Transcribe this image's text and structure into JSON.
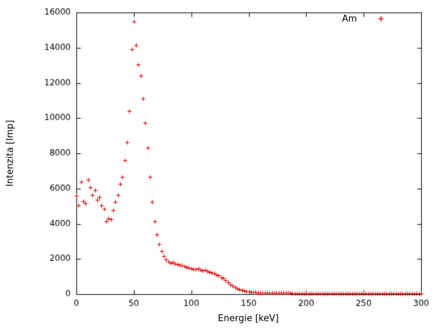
{
  "figure": {
    "xlabel": "Energie [keV]",
    "ylabel": "Intenzita [Imp]",
    "legend_label": "Am",
    "legend_marker": "+"
  },
  "chart_data": {
    "type": "scatter",
    "title": "",
    "xlabel": "Energie [keV]",
    "ylabel": "Intenzita [Imp]",
    "marker": "plus",
    "color": "#dd0000",
    "grid": false,
    "legend": {
      "label": "Am",
      "position": "top-right-inside"
    },
    "xlim": [
      0,
      300
    ],
    "ylim": [
      0,
      16000
    ],
    "xtick_step": 50,
    "ytick_step": 2000,
    "xticks": [
      0,
      50,
      100,
      150,
      200,
      250,
      300
    ],
    "yticks": [
      0,
      2000,
      4000,
      6000,
      8000,
      10000,
      12000,
      14000,
      16000
    ],
    "series": [
      {
        "name": "Am",
        "points": [
          [
            0,
            5600
          ],
          [
            2,
            5050
          ],
          [
            4,
            6400
          ],
          [
            6,
            5300
          ],
          [
            8,
            5150
          ],
          [
            10,
            6500
          ],
          [
            12,
            6050
          ],
          [
            14,
            5650
          ],
          [
            16,
            5900
          ],
          [
            18,
            5350
          ],
          [
            20,
            5500
          ],
          [
            22,
            5050
          ],
          [
            24,
            4850
          ],
          [
            26,
            4150
          ],
          [
            28,
            4300
          ],
          [
            30,
            4250
          ],
          [
            32,
            4750
          ],
          [
            34,
            5250
          ],
          [
            36,
            5650
          ],
          [
            38,
            6250
          ],
          [
            40,
            6650
          ],
          [
            42,
            7600
          ],
          [
            44,
            8650
          ],
          [
            46,
            10400
          ],
          [
            48,
            13900
          ],
          [
            50,
            15500
          ],
          [
            52,
            14150
          ],
          [
            54,
            13050
          ],
          [
            56,
            12400
          ],
          [
            58,
            11100
          ],
          [
            60,
            9750
          ],
          [
            62,
            8300
          ],
          [
            64,
            6650
          ],
          [
            66,
            5250
          ],
          [
            68,
            4150
          ],
          [
            70,
            3400
          ],
          [
            72,
            2850
          ],
          [
            74,
            2450
          ],
          [
            76,
            2150
          ],
          [
            78,
            1980
          ],
          [
            80,
            1840
          ],
          [
            82,
            1760
          ],
          [
            84,
            1830
          ],
          [
            86,
            1720
          ],
          [
            88,
            1680
          ],
          [
            90,
            1640
          ],
          [
            92,
            1660
          ],
          [
            94,
            1580
          ],
          [
            96,
            1540
          ],
          [
            98,
            1500
          ],
          [
            100,
            1470
          ],
          [
            102,
            1430
          ],
          [
            104,
            1400
          ],
          [
            106,
            1440
          ],
          [
            108,
            1370
          ],
          [
            110,
            1330
          ],
          [
            112,
            1360
          ],
          [
            114,
            1300
          ],
          [
            116,
            1270
          ],
          [
            118,
            1240
          ],
          [
            120,
            1200
          ],
          [
            122,
            1120
          ],
          [
            124,
            1060
          ],
          [
            126,
            960
          ],
          [
            128,
            890
          ],
          [
            130,
            790
          ],
          [
            132,
            670
          ],
          [
            134,
            560
          ],
          [
            136,
            460
          ],
          [
            138,
            390
          ],
          [
            140,
            310
          ],
          [
            142,
            270
          ],
          [
            144,
            230
          ],
          [
            146,
            200
          ],
          [
            148,
            170
          ],
          [
            150,
            150
          ],
          [
            152,
            130
          ],
          [
            154,
            115
          ],
          [
            156,
            105
          ],
          [
            158,
            98
          ],
          [
            160,
            92
          ],
          [
            162,
            88
          ],
          [
            164,
            84
          ],
          [
            166,
            80
          ],
          [
            168,
            77
          ],
          [
            170,
            74
          ],
          [
            172,
            71
          ],
          [
            174,
            69
          ],
          [
            176,
            67
          ],
          [
            178,
            65
          ],
          [
            180,
            64
          ],
          [
            182,
            62
          ],
          [
            184,
            61
          ],
          [
            186,
            60
          ],
          [
            188,
            58
          ],
          [
            190,
            57
          ],
          [
            192,
            56
          ],
          [
            194,
            55
          ],
          [
            196,
            55
          ],
          [
            198,
            54
          ],
          [
            200,
            53
          ],
          [
            202,
            52
          ],
          [
            204,
            52
          ],
          [
            206,
            51
          ],
          [
            208,
            50
          ],
          [
            210,
            50
          ],
          [
            212,
            49
          ],
          [
            214,
            49
          ],
          [
            216,
            48
          ],
          [
            218,
            48
          ],
          [
            220,
            47
          ],
          [
            222,
            47
          ],
          [
            224,
            46
          ],
          [
            226,
            46
          ],
          [
            228,
            45
          ],
          [
            230,
            45
          ],
          [
            232,
            45
          ],
          [
            234,
            44
          ],
          [
            236,
            44
          ],
          [
            238,
            44
          ],
          [
            240,
            43
          ],
          [
            242,
            43
          ],
          [
            244,
            43
          ],
          [
            246,
            42
          ],
          [
            248,
            42
          ],
          [
            250,
            42
          ],
          [
            252,
            42
          ],
          [
            254,
            41
          ],
          [
            256,
            41
          ],
          [
            258,
            41
          ],
          [
            260,
            41
          ],
          [
            262,
            40
          ],
          [
            264,
            40
          ],
          [
            266,
            40
          ],
          [
            268,
            40
          ],
          [
            270,
            40
          ],
          [
            272,
            39
          ],
          [
            274,
            39
          ],
          [
            276,
            39
          ],
          [
            278,
            39
          ],
          [
            280,
            39
          ],
          [
            282,
            38
          ],
          [
            284,
            38
          ],
          [
            286,
            38
          ],
          [
            288,
            38
          ],
          [
            290,
            38
          ],
          [
            292,
            37
          ],
          [
            294,
            37
          ],
          [
            296,
            37
          ],
          [
            298,
            37
          ],
          [
            300,
            37
          ]
        ]
      }
    ]
  }
}
